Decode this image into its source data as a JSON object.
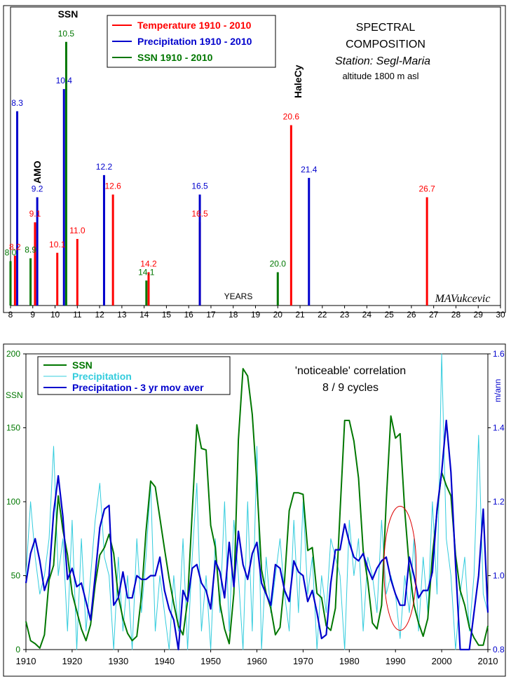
{
  "chart_data": [
    {
      "type": "bar",
      "title": "SPECTRAL COMPOSITION",
      "title_lines": [
        "SPECTRAL",
        "COMPOSITION"
      ],
      "station": "Station:   Segl-Maria",
      "altitude": "altitude 1800 m asl",
      "xlabel": "YEARS",
      "xlim": [
        8,
        30
      ],
      "xticks": [
        "8",
        "9",
        "10",
        "11",
        "12",
        "13",
        "14",
        "15",
        "16",
        "17",
        "18",
        "19",
        "20",
        "21",
        "22",
        "23",
        "24",
        "25",
        "26",
        "27",
        "28",
        "29",
        "30"
      ],
      "amplitude_range": [
        0,
        1
      ],
      "legend": [
        "Temperature 1910 - 2010",
        "Precipitation 1910 - 2010",
        "SSN 1910 - 2010"
      ],
      "annotations": [
        "SSN",
        "AMO",
        "HaleCy"
      ],
      "signature": "MAVukcevic",
      "colors": {
        "temperature": "#ff0000",
        "precipitation": "#0000cc",
        "ssn": "#007700"
      },
      "series": [
        {
          "name": "Temperature 1910 - 2010",
          "peaks": [
            {
              "x": 8.2,
              "amp": 0.18,
              "label": "8.2"
            },
            {
              "x": 9.1,
              "amp": 0.3,
              "label": "9.1"
            },
            {
              "x": 10.1,
              "amp": 0.19,
              "label": "10.1"
            },
            {
              "x": 11.0,
              "amp": 0.24,
              "label": "11.0"
            },
            {
              "x": 12.6,
              "amp": 0.4,
              "label": "12.6"
            },
            {
              "x": 14.2,
              "amp": 0.12,
              "label": "14.2"
            },
            {
              "x": 16.5,
              "amp": 0.3,
              "label": "16.5"
            },
            {
              "x": 20.6,
              "amp": 0.65,
              "label": "20.6"
            },
            {
              "x": 26.7,
              "amp": 0.39,
              "label": "26.7"
            }
          ]
        },
        {
          "name": "Precipitation 1910 - 2010",
          "peaks": [
            {
              "x": 8.3,
              "amp": 0.7,
              "label": "8.3"
            },
            {
              "x": 9.2,
              "amp": 0.39,
              "label": "9.2"
            },
            {
              "x": 10.4,
              "amp": 0.78,
              "label": "10.4"
            },
            {
              "x": 12.2,
              "amp": 0.47,
              "label": "12.2"
            },
            {
              "x": 16.5,
              "amp": 0.4,
              "label": "16.5"
            },
            {
              "x": 21.4,
              "amp": 0.46,
              "label": "21.4"
            }
          ]
        },
        {
          "name": "SSN 1910 - 2010",
          "peaks": [
            {
              "x": 8.0,
              "amp": 0.16,
              "label": "8.0"
            },
            {
              "x": 8.9,
              "amp": 0.17,
              "label": "8.9"
            },
            {
              "x": 10.5,
              "amp": 0.95,
              "label": "10.5"
            },
            {
              "x": 14.1,
              "amp": 0.09,
              "label": "14.1"
            },
            {
              "x": 20.0,
              "amp": 0.12,
              "label": "20.0"
            }
          ]
        }
      ]
    },
    {
      "type": "line",
      "annotation_lines": [
        "'noticeable' correlation",
        "8 / 9 cycles"
      ],
      "ylabel_left": "SSN",
      "ylabel_right": "m/ann",
      "xlim": [
        1910,
        2010
      ],
      "ylim_left": [
        0,
        200
      ],
      "ylim_right": [
        0.8,
        1.6
      ],
      "xticks": [
        "1910",
        "1920",
        "1930",
        "1940",
        "1950",
        "1960",
        "1970",
        "1980",
        "1990",
        "2000",
        "2010"
      ],
      "yticks_left": [
        "0",
        "50",
        "100",
        "150",
        "200"
      ],
      "yticks_right": [
        "0.8",
        "1.0",
        "1.2",
        "1.4",
        "1.6"
      ],
      "highlight_ellipse": {
        "center_year": 1991,
        "center_ssn": 55,
        "half_width_years": 3.5,
        "half_height_ssn": 42
      },
      "colors": {
        "ssn": "#007700",
        "precipitation": "#33ccdd",
        "precip_avg": "#0000cc",
        "ellipse": "#dd0000"
      },
      "x": [
        1910,
        1911,
        1912,
        1913,
        1914,
        1915,
        1916,
        1917,
        1918,
        1919,
        1920,
        1921,
        1922,
        1923,
        1924,
        1925,
        1926,
        1927,
        1928,
        1929,
        1930,
        1931,
        1932,
        1933,
        1934,
        1935,
        1936,
        1937,
        1938,
        1939,
        1940,
        1941,
        1942,
        1943,
        1944,
        1945,
        1946,
        1947,
        1948,
        1949,
        1950,
        1951,
        1952,
        1953,
        1954,
        1955,
        1956,
        1957,
        1958,
        1959,
        1960,
        1961,
        1962,
        1963,
        1964,
        1965,
        1966,
        1967,
        1968,
        1969,
        1970,
        1971,
        1972,
        1973,
        1974,
        1975,
        1976,
        1977,
        1978,
        1979,
        1980,
        1981,
        1982,
        1983,
        1984,
        1985,
        1986,
        1987,
        1988,
        1989,
        1990,
        1991,
        1992,
        1993,
        1994,
        1995,
        1996,
        1997,
        1998,
        1999,
        2000,
        2001,
        2002,
        2003,
        2004,
        2005,
        2006,
        2007,
        2008,
        2009,
        2010
      ],
      "series": [
        {
          "name": "SSN",
          "axis": "left",
          "values": [
            19,
            6,
            4,
            1,
            10,
            47,
            57,
            104,
            81,
            64,
            38,
            26,
            14,
            6,
            17,
            44,
            64,
            69,
            78,
            65,
            36,
            21,
            11,
            6,
            9,
            36,
            80,
            114,
            110,
            89,
            68,
            48,
            31,
            16,
            10,
            33,
            93,
            152,
            136,
            135,
            84,
            69,
            31,
            14,
            4,
            38,
            142,
            190,
            185,
            159,
            112,
            54,
            38,
            28,
            10,
            15,
            47,
            94,
            106,
            106,
            105,
            67,
            69,
            38,
            35,
            16,
            13,
            28,
            93,
            155,
            155,
            141,
            116,
            67,
            46,
            18,
            14,
            30,
            100,
            158,
            143,
            146,
            94,
            55,
            30,
            18,
            9,
            21,
            64,
            93,
            120,
            111,
            104,
            64,
            40,
            30,
            15,
            8,
            3,
            3,
            16
          ]
        },
        {
          "name": "Precipitation",
          "axis": "right",
          "values": [
            1.0,
            1.2,
            1.05,
            0.95,
            1.0,
            1.1,
            1.35,
            1.0,
            1.1,
            0.85,
            1.15,
            0.8,
            1.1,
            0.85,
            1.0,
            1.15,
            1.25,
            1.05,
            1.0,
            0.8,
            1.05,
            0.85,
            1.0,
            0.8,
            1.1,
            0.9,
            1.05,
            1.25,
            0.85,
            1.0,
            0.9,
            0.8,
            1.0,
            0.85,
            1.1,
            0.8,
            1.05,
            1.25,
            0.85,
            1.0,
            0.8,
            1.1,
            0.9,
            1.2,
            0.85,
            1.15,
            1.0,
            0.8,
            1.2,
            0.85,
            1.35,
            0.8,
            1.05,
            0.9,
            1.0,
            1.1,
            0.95,
            0.85,
            1.15,
            0.9,
            1.2,
            0.95,
            1.05,
            0.8,
            1.0,
            0.9,
            1.1,
            1.05,
            1.0,
            0.8,
            1.15,
            1.0,
            1.1,
            0.85,
            1.05,
            1.0,
            0.9,
            1.15,
            0.95,
            1.0,
            0.95,
            0.83,
            1.0,
            0.9,
            1.1,
            0.85,
            1.05,
            0.9,
            1.2,
            0.95,
            1.6,
            1.1,
            1.0,
            0.8,
            0.95,
            1.05,
            0.85,
            1.0,
            1.38,
            0.95,
            0.9
          ]
        },
        {
          "name": "Precipitation - 3 yr mov aver",
          "axis": "right",
          "values": [
            0.98,
            1.06,
            1.1,
            1.04,
            0.96,
            1.0,
            1.17,
            1.27,
            1.16,
            0.99,
            1.02,
            0.97,
            0.98,
            0.93,
            0.88,
            1.0,
            1.13,
            1.18,
            1.19,
            0.92,
            0.94,
            1.01,
            0.94,
            0.94,
            1.0,
            0.99,
            0.99,
            1.0,
            1.0,
            1.05,
            0.96,
            0.91,
            0.88,
            0.8,
            0.96,
            0.93,
            1.02,
            1.03,
            0.98,
            0.96,
            0.91,
            1.04,
            1.01,
            0.94,
            1.09,
            0.97,
            1.12,
            1.03,
            0.99,
            1.06,
            1.09,
            0.98,
            0.95,
            0.92,
            1.03,
            1.02,
            0.96,
            0.93,
            1.04,
            1.01,
            1.0,
            0.93,
            0.96,
            0.9,
            0.83,
            0.84,
            0.98,
            1.07,
            1.07,
            1.14,
            1.09,
            1.05,
            1.04,
            1.06,
            1.02,
            0.99,
            1.02,
            1.04,
            1.05,
            0.99,
            0.95,
            0.92,
            0.92,
            1.05,
            1.0,
            0.94,
            0.96,
            0.96,
            1.01,
            1.18,
            1.28,
            1.42,
            1.28,
            1.03,
            0.8,
            0.8,
            0.72,
            0.9,
            1.0,
            1.18,
            0.9
          ]
        }
      ]
    }
  ]
}
